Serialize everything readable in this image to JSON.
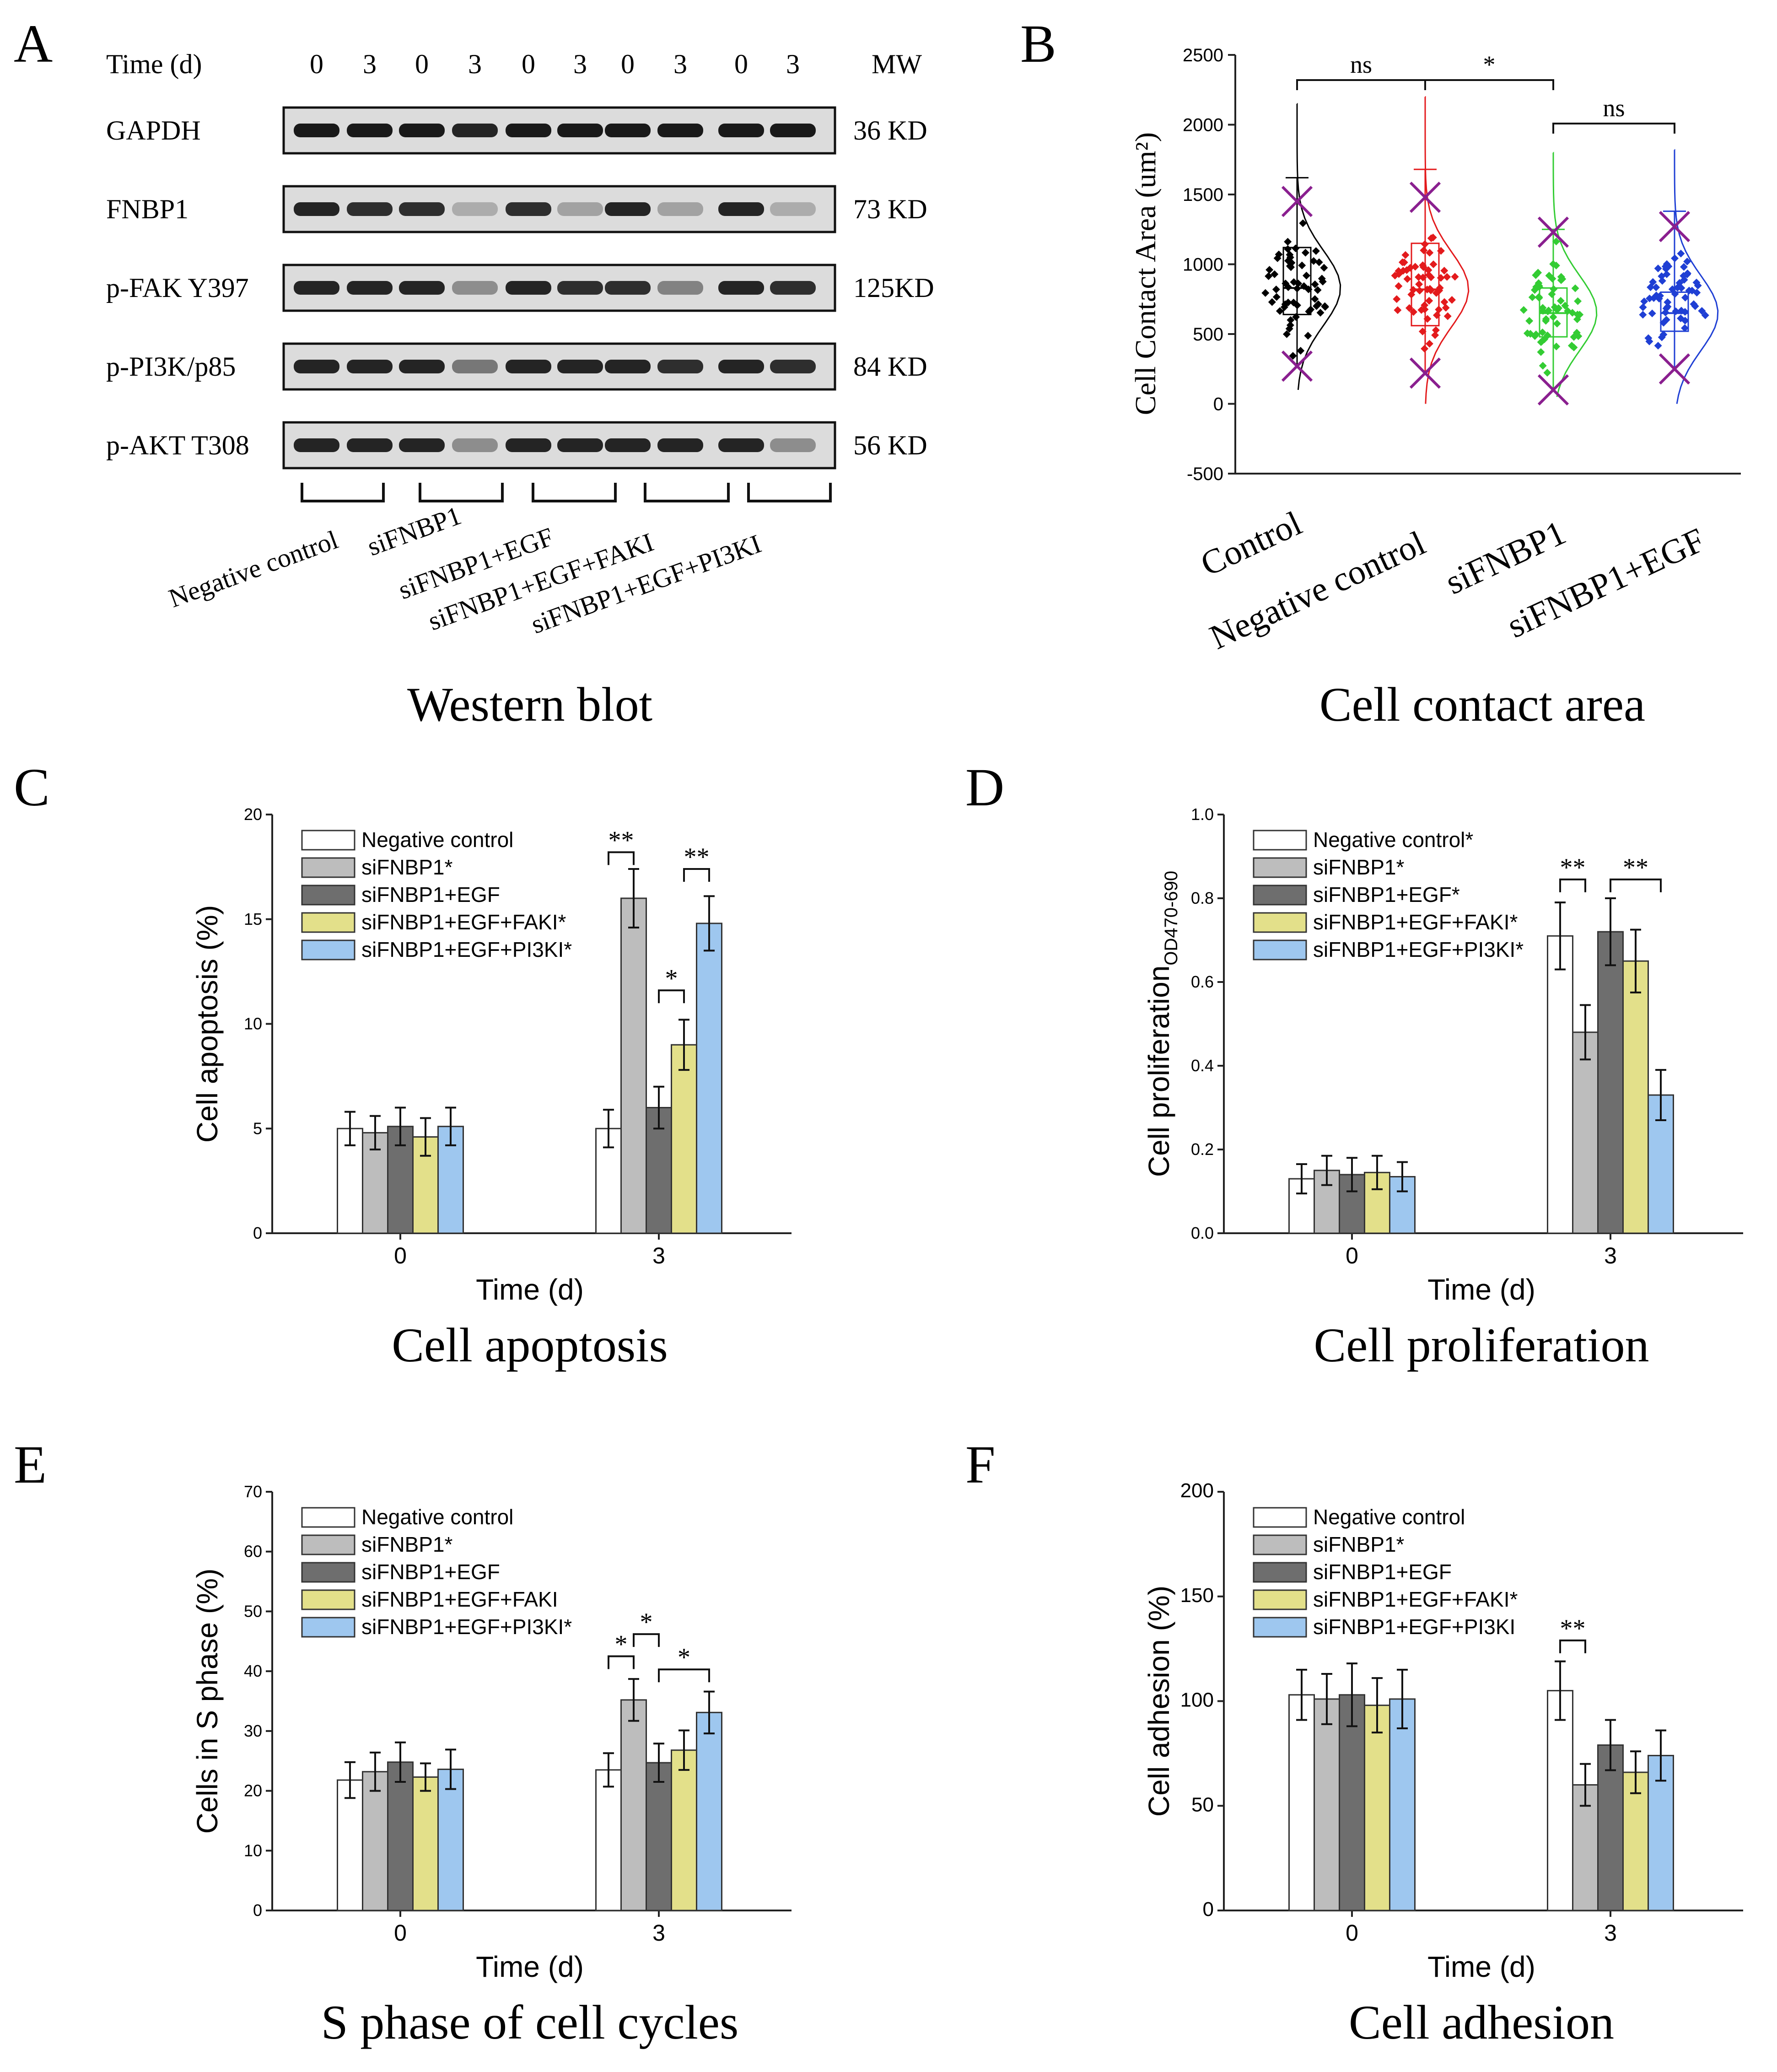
{
  "panels": {
    "A": {
      "letter": "A",
      "caption": "Western blot",
      "time_label": "Time (d)",
      "time_values": [
        "0",
        "3",
        "0",
        "3",
        "0",
        "3",
        "0",
        "3",
        "0",
        "3"
      ],
      "mw_label": "MW",
      "rows": [
        {
          "label": "GAPDH",
          "mw": "36  KD",
          "intensity": [
            1,
            1,
            1,
            0.95,
            1,
            1,
            1,
            1,
            1,
            1
          ]
        },
        {
          "label": "FNBP1",
          "mw": "73  KD",
          "intensity": [
            0.95,
            0.9,
            0.9,
            0.3,
            0.9,
            0.35,
            0.95,
            0.35,
            0.95,
            0.3
          ]
        },
        {
          "label": "p-FAK Y397",
          "mw": "125KD",
          "intensity": [
            0.95,
            0.95,
            0.95,
            0.45,
            0.95,
            0.9,
            0.9,
            0.5,
            0.95,
            0.9
          ]
        },
        {
          "label": "p-PI3K/p85",
          "mw": "84  KD",
          "intensity": [
            0.95,
            0.95,
            0.95,
            0.55,
            0.95,
            0.95,
            0.95,
            0.9,
            0.95,
            0.9
          ]
        },
        {
          "label": "p-AKT T308",
          "mw": "56  KD",
          "intensity": [
            0.95,
            0.95,
            0.95,
            0.45,
            0.95,
            0.95,
            0.95,
            0.95,
            0.95,
            0.45
          ]
        }
      ],
      "groups": [
        "Negative control",
        "siFNBP1",
        "siFNBP1+EGF",
        "siFNBP1+EGF+FAKI",
        "siFNBP1+EGF+PI3KI"
      ]
    },
    "B": {
      "letter": "B",
      "caption": "Cell contact area",
      "chart_type": "violin-scatter",
      "ylabel": "Cell Contact Area (um²)",
      "ylim": [
        -500,
        2500
      ],
      "yticks": [
        "-500",
        "0",
        "500",
        "1000",
        "1500",
        "2000",
        "2500"
      ],
      "categories": [
        "Control",
        "Negative control",
        "siFNBP1",
        "siFNBP1+EGF"
      ],
      "colors": [
        "#000000",
        "#e31a1c",
        "#33cc33",
        "#1f3fd4"
      ],
      "stats": [
        {
          "min": 100,
          "p5": 270,
          "q1": 640,
          "median": 830,
          "q3": 1120,
          "p95": 1450,
          "max": 2150,
          "whisker_hi": 1620,
          "mean": 840
        },
        {
          "min": 0,
          "p5": 220,
          "q1": 560,
          "median": 820,
          "q3": 1150,
          "p95": 1480,
          "max": 2200,
          "whisker_hi": 1680,
          "mean": 800
        },
        {
          "min": 50,
          "p5": 100,
          "q1": 480,
          "median": 650,
          "q3": 830,
          "p95": 1230,
          "max": 1800,
          "whisker_hi": 1250,
          "mean": 650
        },
        {
          "min": 0,
          "p5": 250,
          "q1": 520,
          "median": 650,
          "q3": 800,
          "p95": 1270,
          "max": 1820,
          "whisker_hi": 1380,
          "mean": 660
        }
      ],
      "significance": [
        {
          "from": 0,
          "to": 1,
          "label": "ns"
        },
        {
          "from": 1,
          "to": 2,
          "label": "*"
        },
        {
          "from": 2,
          "to": 3,
          "label": "ns"
        }
      ]
    }
  },
  "chart_data": [
    {
      "id": "C",
      "letter": "C",
      "caption": "Cell apoptosis",
      "type": "bar",
      "xlabel": "Time (d)",
      "ylabel": "Cell apoptosis (%)",
      "ylim": [
        0,
        20
      ],
      "yticks": [
        "0",
        "5",
        "10",
        "15",
        "20"
      ],
      "categories": [
        "0",
        "3"
      ],
      "series": [
        {
          "name": "Negative control",
          "color": "#ffffff",
          "values": [
            5.0,
            5.0
          ],
          "errors": [
            0.8,
            0.9
          ]
        },
        {
          "name": "siFNBP1*",
          "color": "#bdbdbd",
          "values": [
            4.8,
            16.0
          ],
          "errors": [
            0.8,
            1.4
          ]
        },
        {
          "name": "siFNBP1+EGF",
          "color": "#6e6e6e",
          "values": [
            5.1,
            6.0
          ],
          "errors": [
            0.9,
            1.0
          ]
        },
        {
          "name": "siFNBP1+EGF+FAKI*",
          "color": "#e3e08a",
          "values": [
            4.6,
            9.0
          ],
          "errors": [
            0.9,
            1.2
          ]
        },
        {
          "name": "siFNBP1+EGF+PI3KI*",
          "color": "#9ec7ef",
          "values": [
            5.1,
            14.8
          ],
          "errors": [
            0.9,
            1.3
          ]
        }
      ],
      "brackets": [
        {
          "cat": 1,
          "from": 0,
          "to": 1,
          "y": 18.2,
          "label": "**"
        },
        {
          "cat": 1,
          "from": 3,
          "to": 4,
          "y": 17.4,
          "label": "**"
        },
        {
          "cat": 1,
          "from": 2,
          "to": 3,
          "y": 11.6,
          "label": "*"
        }
      ]
    },
    {
      "id": "D",
      "letter": "D",
      "caption": "Cell proliferation",
      "type": "bar",
      "xlabel": "Time (d)",
      "ylabel": "Cell proliferation",
      "ylabel_sub": "OD470-690",
      "ylim": [
        0,
        1.0
      ],
      "yticks": [
        "0.0",
        "0.2",
        "0.4",
        "0.6",
        "0.8",
        "1.0"
      ],
      "categories": [
        "0",
        "3"
      ],
      "series": [
        {
          "name": "Negative control*",
          "color": "#ffffff",
          "values": [
            0.13,
            0.71
          ],
          "errors": [
            0.035,
            0.08
          ]
        },
        {
          "name": "siFNBP1*",
          "color": "#bdbdbd",
          "values": [
            0.15,
            0.48
          ],
          "errors": [
            0.035,
            0.065
          ]
        },
        {
          "name": "siFNBP1+EGF*",
          "color": "#6e6e6e",
          "values": [
            0.14,
            0.72
          ],
          "errors": [
            0.04,
            0.08
          ]
        },
        {
          "name": "siFNBP1+EGF+FAKI*",
          "color": "#e3e08a",
          "values": [
            0.145,
            0.65
          ],
          "errors": [
            0.04,
            0.075
          ]
        },
        {
          "name": "siFNBP1+EGF+PI3KI*",
          "color": "#9ec7ef",
          "values": [
            0.135,
            0.33
          ],
          "errors": [
            0.035,
            0.06
          ]
        }
      ],
      "brackets": [
        {
          "cat": 1,
          "from": 0,
          "to": 1,
          "y": 0.845,
          "label": "**"
        },
        {
          "cat": 1,
          "from": 2,
          "to": 4,
          "y": 0.845,
          "label": "**"
        }
      ]
    },
    {
      "id": "E",
      "letter": "E",
      "caption": "S phase of cell cycles",
      "type": "bar",
      "xlabel": "Time (d)",
      "ylabel": "Cells in S phase (%)",
      "ylim": [
        0,
        70
      ],
      "yticks": [
        "0",
        "10",
        "20",
        "30",
        "40",
        "50",
        "60",
        "70"
      ],
      "categories": [
        "0",
        "3"
      ],
      "series": [
        {
          "name": "Negative control",
          "color": "#ffffff",
          "values": [
            21.8,
            23.5
          ],
          "errors": [
            3.0,
            2.8
          ]
        },
        {
          "name": "siFNBP1*",
          "color": "#bdbdbd",
          "values": [
            23.2,
            35.2
          ],
          "errors": [
            3.2,
            3.5
          ]
        },
        {
          "name": "siFNBP1+EGF",
          "color": "#6e6e6e",
          "values": [
            24.8,
            24.7
          ],
          "errors": [
            3.3,
            3.2
          ]
        },
        {
          "name": "siFNBP1+EGF+FAKI",
          "color": "#e3e08a",
          "values": [
            22.3,
            26.8
          ],
          "errors": [
            2.3,
            3.3
          ]
        },
        {
          "name": "siFNBP1+EGF+PI3KI*",
          "color": "#9ec7ef",
          "values": [
            23.6,
            33.1
          ],
          "errors": [
            3.3,
            3.5
          ]
        }
      ],
      "brackets": [
        {
          "cat": 1,
          "from": 0,
          "to": 1,
          "y": 42.5,
          "label": "*"
        },
        {
          "cat": 1,
          "from": 1,
          "to": 2,
          "y": 46.2,
          "label": "*"
        },
        {
          "cat": 1,
          "from": 2,
          "to": 4,
          "y": 40.3,
          "label": "*"
        }
      ]
    },
    {
      "id": "F",
      "letter": "F",
      "caption": "Cell adhesion",
      "type": "bar",
      "xlabel": "Time (d)",
      "ylabel": "Cell adhesion (%)",
      "ylim": [
        0,
        200
      ],
      "yticks": [
        "0",
        "50",
        "100",
        "150",
        "200"
      ],
      "categories": [
        "0",
        "3"
      ],
      "series": [
        {
          "name": "Negative control",
          "color": "#ffffff",
          "values": [
            103,
            105
          ],
          "errors": [
            12,
            14
          ]
        },
        {
          "name": "siFNBP1*",
          "color": "#bdbdbd",
          "values": [
            101,
            60
          ],
          "errors": [
            12,
            10
          ]
        },
        {
          "name": "siFNBP1+EGF",
          "color": "#6e6e6e",
          "values": [
            103,
            79
          ],
          "errors": [
            15,
            12
          ]
        },
        {
          "name": "siFNBP1+EGF+FAKI*",
          "color": "#e3e08a",
          "values": [
            98,
            66
          ],
          "errors": [
            13,
            10
          ]
        },
        {
          "name": "siFNBP1+EGF+PI3KI",
          "color": "#9ec7ef",
          "values": [
            101,
            74
          ],
          "errors": [
            14,
            12
          ]
        }
      ],
      "brackets": [
        {
          "cat": 1,
          "from": 0,
          "to": 1,
          "y": 129,
          "label": "**"
        }
      ]
    }
  ]
}
